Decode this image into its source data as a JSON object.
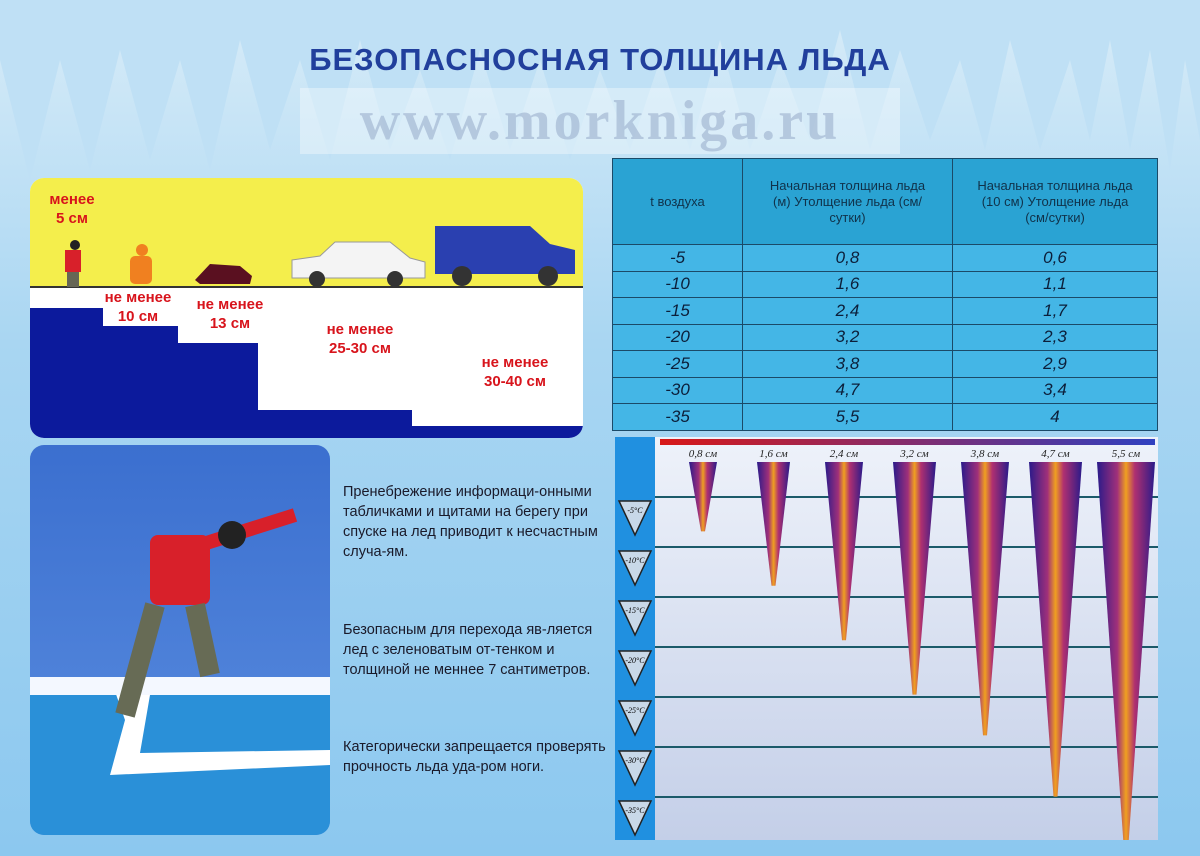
{
  "title": "БЕЗОПАСНОСНАЯ ТОЛЩИНА ЛЬДА",
  "thickness_scale": [
    {
      "line1": "менее",
      "line2": "5 см",
      "icon": "person-falling-through-ice-icon"
    },
    {
      "line1": "не менее",
      "line2": "10 см",
      "icon": "ice-fisherman-icon"
    },
    {
      "line1": "не менее",
      "line2": "13 см",
      "icon": "snowmobile-icon"
    },
    {
      "line1": "не менее",
      "line2": "25-30 см",
      "icon": "car-icon"
    },
    {
      "line1": "не менее",
      "line2": "30-40 см",
      "icon": "pickup-truck-icon"
    }
  ],
  "table": {
    "headers": [
      "t  воздуха",
      "Начальная толщина льда (м) Утолщение льда (см/сутки)",
      "Начальная толщина льда (10 см) Утолщение льда (см/сутки)"
    ],
    "rows": [
      [
        "-5",
        "0,8",
        "0,6"
      ],
      [
        "-10",
        "1,6",
        "1,1"
      ],
      [
        "-15",
        "2,4",
        "1,7"
      ],
      [
        "-20",
        "3,2",
        "2,3"
      ],
      [
        "-25",
        "3,8",
        "2,9"
      ],
      [
        "-30",
        "4,7",
        "3,4"
      ],
      [
        "-35",
        "5,5",
        "4"
      ]
    ]
  },
  "paragraphs": [
    "Пренебрежение информаци-онными табличками и щитами на берегу при спуске на лед приводит к несчастным случа-ям.",
    "Безопасным для перехода яв-ляется лед с зеленоватым от-тенком и толщиной не меннее 7 сантиметров.",
    "Категорически запрещается проверять прочность льда уда-ром ноги."
  ],
  "icicle_chart": {
    "temps": [
      "-5°C",
      "-10°C",
      "-15°C",
      "-20°C",
      "-25°C",
      "-30°C",
      "-35°C"
    ],
    "thickness_labels": [
      "0,8 см",
      "1,6 см",
      "2,4 см",
      "3,2 см",
      "3,8 см",
      "4,7 см",
      "5,5 см"
    ],
    "values": [
      0.8,
      1.6,
      2.4,
      3.2,
      3.8,
      4.7,
      5.5
    ]
  },
  "watermark": "www.morkniga.ru",
  "colors": {
    "title": "#213f9c",
    "water": "#0c1a9c",
    "sky": "#f4ee4c",
    "warning": "#d8141c",
    "table": "#44b6e6"
  }
}
